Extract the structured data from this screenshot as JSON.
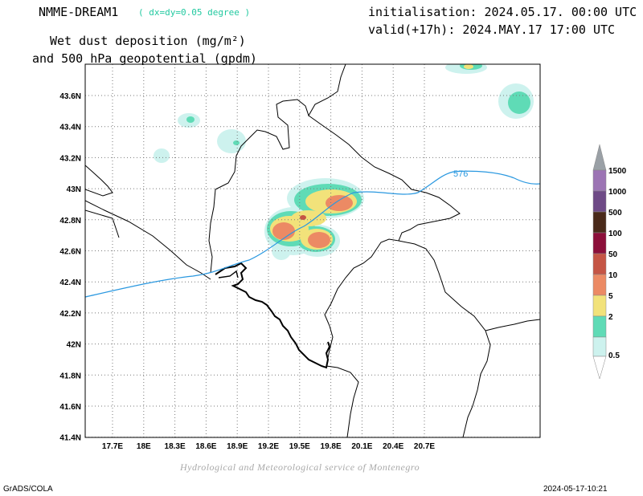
{
  "header": {
    "model": "NMME-DREAM1",
    "resolution": "( dx=dy=0.05 degree )",
    "init": "initialisation: 2024.05.17. 00:00 UTC",
    "valid": "valid(+17h): 2024.MAY.17 17:00 UTC",
    "title_line1": "Wet dust deposition (mg/m²)",
    "title_line2": "and 500 hPa geopotential (gpdm)"
  },
  "map": {
    "lat_labels": [
      "43.6N",
      "43.4N",
      "43.2N",
      "43N",
      "42.8N",
      "42.6N",
      "42.4N",
      "42.2N",
      "42N",
      "41.8N",
      "41.6N",
      "41.4N"
    ],
    "lon_labels": [
      "17.7E",
      "18E",
      "18.3E",
      "18.6E",
      "18.9E",
      "19.2E",
      "19.5E",
      "19.8E",
      "20.1E",
      "20.4E",
      "20.7E"
    ],
    "contour_label": "576",
    "colors": {
      "c0_5": "#cdf2ee",
      "c2": "#5fdbb6",
      "c5": "#f2e27a",
      "c10": "#ec8a64",
      "c50": "#c55545",
      "c100": "#8c0f3a",
      "c500": "#4a2a1a",
      "c1000": "#6e4a86",
      "c1500": "#9c74b4",
      "contour": "#2a98e0"
    }
  },
  "legend": {
    "labels": [
      "1500",
      "1000",
      "500",
      "100",
      "50",
      "10",
      "5",
      "2",
      "0.5"
    ]
  },
  "footer": {
    "credit": "Hydrological and Meteorological service of Montenegro",
    "left": "GrADS/COLA",
    "right": "2024-05-17-10:21"
  }
}
